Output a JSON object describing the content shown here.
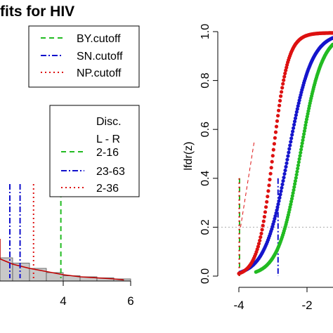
{
  "title": "fits for  HIV",
  "chart_data": [
    {
      "type": "bar",
      "panel": "left",
      "title": "fits for  HIV",
      "xlim": [
        0,
        6
      ],
      "x_ticks": [
        "4",
        "6"
      ],
      "x_tick_values": [
        4,
        6
      ],
      "histogram": {
        "bins": [
          [
            1,
            1.5
          ],
          [
            1.5,
            2
          ],
          [
            2,
            2.5
          ],
          [
            2.5,
            3
          ],
          [
            3,
            3.5
          ],
          [
            3.5,
            4
          ],
          [
            4,
            4.5
          ],
          [
            4.5,
            5
          ],
          [
            5,
            5.5
          ],
          [
            5.5,
            6
          ]
        ],
        "density": [
          0.035,
          0.028,
          0.022,
          0.017,
          0.012,
          0.008,
          0.005,
          0.004,
          0.003,
          0.002
        ]
      },
      "density_fit": {
        "x": [
          0,
          0.5,
          1,
          1.5,
          2,
          2.5,
          3,
          3.5,
          4,
          4.5,
          5,
          5.5,
          5.8
        ],
        "y": [
          0.04,
          0.036,
          0.031,
          0.026,
          0.021,
          0.016,
          0.012,
          0.009,
          0.006,
          0.004,
          0.003,
          0.002,
          0.001
        ]
      },
      "cutoff_lines": [
        {
          "name": "BY.cutoff",
          "x": 3.93,
          "color": "#22bb22",
          "dash": "dashed"
        },
        {
          "name": "SN.cutoff",
          "x": 2.72,
          "color": "#1010cc",
          "dash": "dotdash"
        },
        {
          "name": "NP.cutoff",
          "x": 3.12,
          "color": "#dd1111",
          "dash": "dotted"
        }
      ],
      "legend1": {
        "items": [
          {
            "label": "BY.cutoff",
            "color": "#22bb22",
            "dash": "dashed"
          },
          {
            "label": "SN.cutoff",
            "color": "#1010cc",
            "dash": "dotdash"
          },
          {
            "label": "NP.cutoff",
            "color": "#dd1111",
            "dash": "dotted"
          }
        ]
      },
      "legend2": {
        "title_line1": "Disc.",
        "title_line2": "L - R",
        "items": [
          {
            "label": "2-16",
            "color": "#22bb22",
            "dash": "dashed"
          },
          {
            "label": "23-63",
            "color": "#1010cc",
            "dash": "dotdash"
          },
          {
            "label": "2-36",
            "color": "#dd1111",
            "dash": "dotted"
          }
        ]
      }
    },
    {
      "type": "scatter",
      "panel": "right",
      "ylabel": "lfdr(z)",
      "xlim": [
        -4.3,
        -1.05
      ],
      "ylim": [
        0,
        1.0
      ],
      "x_ticks": [
        "-4",
        "-2"
      ],
      "x_tick_values": [
        -4,
        -2
      ],
      "y_ticks": [
        "0.0",
        "0.2",
        "0.4",
        "0.6",
        "0.8",
        "1.0"
      ],
      "y_tick_values": [
        0,
        0.2,
        0.4,
        0.6,
        0.8,
        1.0
      ],
      "reference_line": {
        "y": 0.2,
        "style": "dotted",
        "color": "#aaaaaa"
      },
      "series": [
        {
          "color": "#22bb22",
          "center": -2.2,
          "scale": 0.32,
          "start": -3.5,
          "end": -1.05
        },
        {
          "color": "#1515cc",
          "center": -2.55,
          "scale": 0.34,
          "start": -3.95,
          "end": -1.05
        },
        {
          "color": "#dd1111",
          "center": -3.0,
          "scale": 0.22,
          "start": -4.0,
          "end": -1.05
        }
      ],
      "cutoff_lines": [
        {
          "x": -3.98,
          "color": "#22bb22",
          "dash": "dashed",
          "top": 0.4
        },
        {
          "x": -3.99,
          "color": "#dd1111",
          "dash": "dotted",
          "top": 0.4
        },
        {
          "x": -2.85,
          "color": "#1010cc",
          "dash": "dotdash",
          "top": 0.4
        }
      ]
    }
  ]
}
